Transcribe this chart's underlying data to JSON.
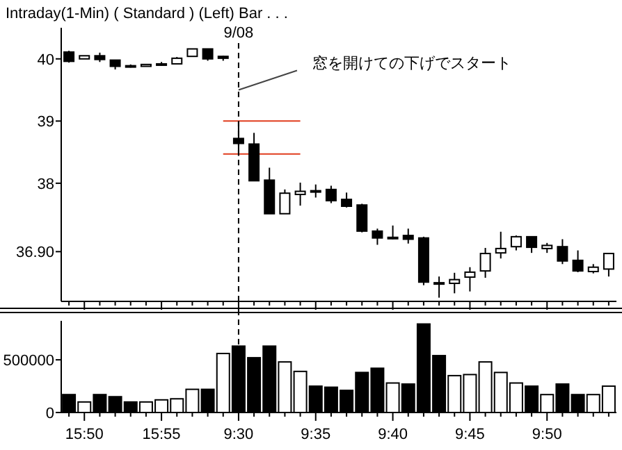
{
  "chart_data": [
    {
      "type": "candlestick",
      "title": "Intraday(1-Min) ( Standard )  (Left)    Bar . . .",
      "categories": [
        null,
        "15:50",
        null,
        null,
        null,
        null,
        "15:55",
        null,
        null,
        null,
        null,
        "9:30",
        null,
        null,
        null,
        null,
        "9:35",
        null,
        null,
        null,
        null,
        "9:40",
        null,
        null,
        null,
        null,
        "9:45",
        null,
        null,
        null,
        null,
        "9:50",
        null,
        null,
        null,
        null
      ],
      "ohlc": [
        [
          40.11,
          40.13,
          39.94,
          39.96
        ],
        [
          40.0,
          40.05,
          40.0,
          40.05
        ],
        [
          40.05,
          40.1,
          39.95,
          39.99
        ],
        [
          39.98,
          39.98,
          39.83,
          39.88
        ],
        [
          39.89,
          39.91,
          39.86,
          39.88
        ],
        [
          39.88,
          39.91,
          39.88,
          39.91
        ],
        [
          39.92,
          39.95,
          39.89,
          39.92
        ],
        [
          39.92,
          40.03,
          39.92,
          40.01
        ],
        [
          40.04,
          40.16,
          40.04,
          40.16
        ],
        [
          40.16,
          40.16,
          39.97,
          40.0
        ],
        [
          40.04,
          40.05,
          39.97,
          40.01
        ],
        [
          38.72,
          39.0,
          38.44,
          38.64
        ],
        [
          38.63,
          38.81,
          38.04,
          38.04
        ],
        [
          38.05,
          38.25,
          37.51,
          37.51
        ],
        [
          37.51,
          37.9,
          37.51,
          37.84
        ],
        [
          37.82,
          38.01,
          37.64,
          37.87
        ],
        [
          37.88,
          37.98,
          37.77,
          37.87
        ],
        [
          37.9,
          37.96,
          37.68,
          37.72
        ],
        [
          37.74,
          37.85,
          37.61,
          37.63
        ],
        [
          37.65,
          37.67,
          37.21,
          37.23
        ],
        [
          37.23,
          37.27,
          37.01,
          37.12
        ],
        [
          37.13,
          37.32,
          37.1,
          37.13
        ],
        [
          37.16,
          37.27,
          37.03,
          37.1
        ],
        [
          37.12,
          37.14,
          36.36,
          36.41
        ],
        [
          36.4,
          36.5,
          36.16,
          36.4
        ],
        [
          36.39,
          36.56,
          36.23,
          36.45
        ],
        [
          36.49,
          36.65,
          36.26,
          36.57
        ],
        [
          36.59,
          36.96,
          36.48,
          36.87
        ],
        [
          36.88,
          37.22,
          36.79,
          36.95
        ],
        [
          36.98,
          37.16,
          36.92,
          37.14
        ],
        [
          37.14,
          37.14,
          36.88,
          36.97
        ],
        [
          36.95,
          37.04,
          36.88,
          37.0
        ],
        [
          36.98,
          37.1,
          36.7,
          36.75
        ],
        [
          36.76,
          36.92,
          36.57,
          36.59
        ],
        [
          36.58,
          36.7,
          36.55,
          36.65
        ],
        [
          36.62,
          36.87,
          36.5,
          36.87
        ]
      ],
      "ylim": [
        36.1,
        40.5
      ],
      "yticks": [
        40,
        39,
        38,
        {
          "value": 36.9,
          "label": "36.90"
        }
      ],
      "tick_labels": "y",
      "ref_lines": [
        {
          "axis": "x",
          "value": "9:30",
          "label": "9/08",
          "line_style": "dashed",
          "color": "#000000"
        },
        {
          "axis": "y",
          "value": 39,
          "color": "#e03c1e"
        },
        {
          "axis": "y",
          "value": 38.47,
          "color": "#e03c1e"
        }
      ],
      "annotations": [
        {
          "text": "窓を開けての下げでスタート",
          "x": "9:30",
          "y": 39.5
        }
      ]
    },
    {
      "type": "bar",
      "categories": [
        null,
        "15:50",
        null,
        null,
        null,
        null,
        "15:55",
        null,
        null,
        null,
        null,
        "9:30",
        null,
        null,
        null,
        null,
        "9:35",
        null,
        null,
        null,
        null,
        "9:40",
        null,
        null,
        null,
        null,
        "9:45",
        null,
        null,
        null,
        null,
        "9:50",
        null,
        null,
        null,
        null
      ],
      "values": [
        170000,
        100000,
        170000,
        150000,
        100000,
        100000,
        120000,
        130000,
        220000,
        220000,
        560000,
        630000,
        520000,
        630000,
        480000,
        390000,
        250000,
        240000,
        210000,
        380000,
        420000,
        280000,
        270000,
        840000,
        540000,
        350000,
        360000,
        480000,
        380000,
        280000,
        250000,
        170000,
        270000,
        170000,
        170000,
        250000
      ],
      "colors": [
        "#000000",
        "#ffffff",
        "#000000",
        "#000000",
        "#000000",
        "#ffffff",
        "#ffffff",
        "#ffffff",
        "#ffffff",
        "#000000",
        "#ffffff",
        "#000000",
        "#000000",
        "#000000",
        "#ffffff",
        "#ffffff",
        "#000000",
        "#000000",
        "#000000",
        "#000000",
        "#000000",
        "#ffffff",
        "#000000",
        "#000000",
        "#000000",
        "#ffffff",
        "#ffffff",
        "#ffffff",
        "#ffffff",
        "#ffffff",
        "#000000",
        "#ffffff",
        "#000000",
        "#000000",
        "#ffffff",
        "#ffffff"
      ],
      "ylim": [
        0,
        870000
      ],
      "yticks": [
        0,
        500000
      ],
      "ref_lines": [
        {
          "axis": "x",
          "value": "9:30",
          "line_style": "dashed",
          "color": "#000000"
        }
      ]
    }
  ]
}
